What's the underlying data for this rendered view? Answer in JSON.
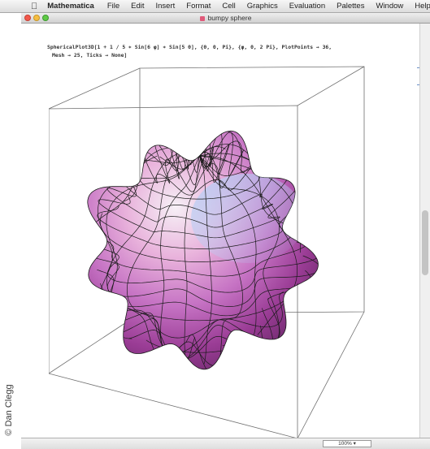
{
  "menubar": {
    "items": [
      "Mathematica",
      "File",
      "Edit",
      "Insert",
      "Format",
      "Cell",
      "Graphics",
      "Evaluation",
      "Palettes",
      "Window",
      "Help"
    ]
  },
  "window": {
    "title": "bumpy sphere"
  },
  "notebook": {
    "input_line1": "SphericalPlot3D[1 + 1 / 5 ∗ Sin[6 φ] ∗ Sin[5 θ], {θ, 0, Pi}, {φ, 0, 2 Pi}, PlotPoints → 36,",
    "input_line2": "Mesh → 25, Ticks → None]"
  },
  "status": {
    "zoom": "100%"
  },
  "credit": "© Dan Clegg",
  "colors": {
    "mesh": "#1a1a1a",
    "surface_pink": "#e39ad0",
    "surface_white": "#f6f0f6",
    "surface_blue": "#a9bff0",
    "surface_magenta": "#9a2c8a"
  }
}
